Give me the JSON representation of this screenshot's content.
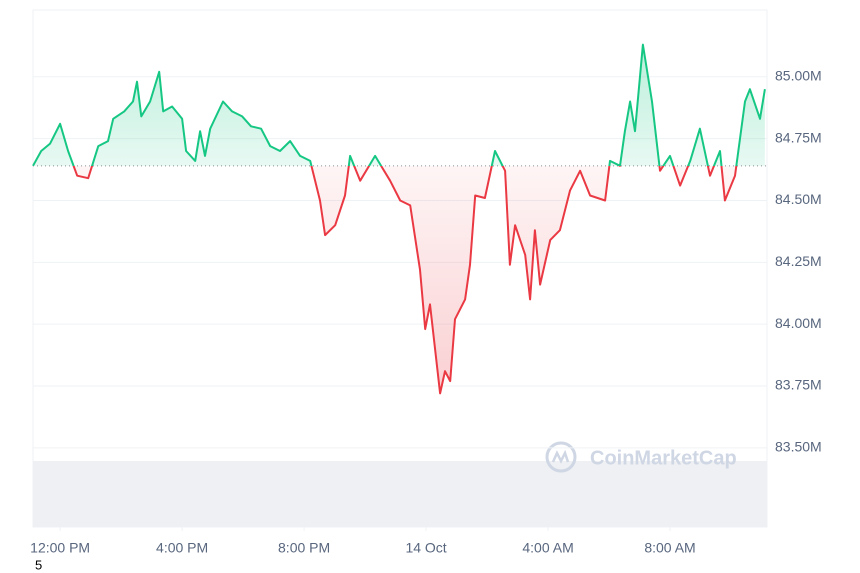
{
  "chart_data": {
    "type": "line",
    "x": [
      -0.89,
      -0.62,
      -0.33,
      0,
      0.26,
      0.56,
      0.92,
      1.25,
      1.57,
      1.74,
      2.1,
      2.39,
      2.52,
      2.66,
      2.95,
      3.25,
      3.38,
      3.67,
      4.0,
      4.13,
      4.43,
      4.59,
      4.75,
      4.92,
      5.34,
      5.64,
      5.97,
      6.26,
      6.59,
      6.89,
      7.21,
      7.54,
      7.87,
      8.2,
      8.52,
      8.69,
      9.02,
      9.34,
      9.51,
      9.84,
      10.33,
      10.82,
      11.15,
      11.48,
      11.8,
      11.97,
      12.13,
      12.46,
      12.62,
      12.79,
      12.95,
      13.28,
      13.44,
      13.61,
      13.93,
      14.26,
      14.59,
      14.75,
      14.92,
      15.25,
      15.41,
      15.57,
      15.74,
      16.07,
      16.39,
      16.72,
      17.05,
      17.38,
      17.87,
      18.03,
      18.36,
      18.52,
      18.69,
      18.85,
      19.11,
      19.41,
      19.67,
      20.0,
      20.33,
      20.66,
      20.98,
      21.31,
      21.64,
      21.8,
      22.13,
      22.46,
      22.62,
      22.95,
      23.11
    ],
    "values": [
      84.64,
      84.7,
      84.73,
      84.81,
      84.7,
      84.6,
      84.59,
      84.72,
      84.74,
      84.83,
      84.86,
      84.9,
      84.98,
      84.84,
      84.9,
      85.02,
      84.86,
      84.88,
      84.83,
      84.7,
      84.66,
      84.78,
      84.68,
      84.79,
      84.9,
      84.86,
      84.84,
      84.8,
      84.79,
      84.72,
      84.7,
      84.74,
      84.68,
      84.66,
      84.5,
      84.36,
      84.4,
      84.52,
      84.68,
      84.58,
      84.68,
      84.58,
      84.5,
      84.48,
      84.22,
      83.98,
      84.08,
      83.72,
      83.81,
      83.77,
      84.02,
      84.1,
      84.24,
      84.52,
      84.51,
      84.7,
      84.62,
      84.24,
      84.4,
      84.28,
      84.1,
      84.38,
      84.16,
      84.34,
      84.38,
      84.54,
      84.62,
      84.52,
      84.5,
      84.66,
      84.64,
      84.78,
      84.9,
      84.78,
      85.13,
      84.9,
      84.62,
      84.68,
      84.56,
      84.66,
      84.79,
      84.6,
      84.7,
      84.5,
      84.6,
      84.9,
      84.95,
      84.83,
      84.95
    ],
    "baseline": 84.64,
    "up_color": "#16c784",
    "down_color": "#ea3943",
    "xlim": [
      -0.89,
      23.18
    ],
    "xticks": [
      {
        "value": 0,
        "label": "12:00 PM"
      },
      {
        "value": 4,
        "label": "4:00 PM"
      },
      {
        "value": 8,
        "label": "8:00 PM"
      },
      {
        "value": 12,
        "label": "14 Oct"
      },
      {
        "value": 16,
        "label": "4:00 AM"
      },
      {
        "value": 20,
        "label": "8:00 AM"
      }
    ],
    "ylim": [
      83.18,
      85.27
    ],
    "yticks": [
      {
        "value": 83.5,
        "label": "83.50M"
      },
      {
        "value": 83.75,
        "label": "83.75M"
      },
      {
        "value": 84,
        "label": "84.00M"
      },
      {
        "value": 84.25,
        "label": "84.25M"
      },
      {
        "value": 84.5,
        "label": "84.50M"
      },
      {
        "value": 84.75,
        "label": "84.75M"
      },
      {
        "value": 85,
        "label": "85.00M"
      }
    ],
    "grid": true,
    "watermark": "CoinMarketCap",
    "page_marker": "5"
  }
}
